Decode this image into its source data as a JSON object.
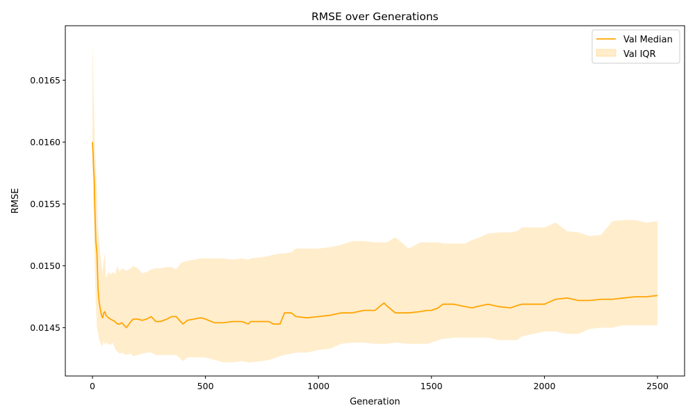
{
  "chart_data": {
    "type": "line",
    "title": "RMSE over Generations",
    "xlabel": "Generation",
    "ylabel": "RMSE",
    "xlim": [
      -120,
      2620
    ],
    "ylim": [
      0.01411,
      0.01694
    ],
    "xticks": [
      0,
      500,
      1000,
      1500,
      2000,
      2500
    ],
    "xtick_labels": [
      "0",
      "500",
      "1000",
      "1500",
      "2000",
      "2500"
    ],
    "yticks": [
      0.0145,
      0.015,
      0.0155,
      0.016,
      0.0165
    ],
    "ytick_labels": [
      "0.0145",
      "0.0150",
      "0.0155",
      "0.0160",
      "0.0165"
    ],
    "grid": false,
    "legend_position": "top-right",
    "colors": {
      "median": "#ffa500",
      "iqr_fill": "#ffa500",
      "iqr_alpha": 0.2
    },
    "series": [
      {
        "name": "Val Median",
        "kind": "line",
        "x": [
          0,
          3,
          5,
          8,
          10,
          15,
          20,
          25,
          30,
          35,
          40,
          45,
          50,
          55,
          60,
          70,
          80,
          90,
          100,
          110,
          120,
          130,
          150,
          170,
          180,
          200,
          220,
          240,
          260,
          280,
          300,
          330,
          350,
          370,
          390,
          400,
          420,
          450,
          480,
          500,
          540,
          580,
          620,
          660,
          690,
          700,
          750,
          780,
          800,
          830,
          850,
          880,
          900,
          950,
          1000,
          1050,
          1100,
          1150,
          1200,
          1250,
          1290,
          1300,
          1340,
          1400,
          1450,
          1480,
          1500,
          1530,
          1550,
          1600,
          1650,
          1680,
          1700,
          1750,
          1800,
          1850,
          1880,
          1900,
          2000,
          2050,
          2100,
          2150,
          2200,
          2250,
          2300,
          2350,
          2400,
          2450,
          2500
        ],
        "y": [
          0.016,
          0.0159,
          0.0158,
          0.0157,
          0.0155,
          0.0152,
          0.0151,
          0.0148,
          0.0147,
          0.01465,
          0.0146,
          0.01458,
          0.01462,
          0.01463,
          0.0146,
          0.01458,
          0.01457,
          0.01456,
          0.01455,
          0.01453,
          0.01453,
          0.01454,
          0.0145,
          0.01455,
          0.01457,
          0.01457,
          0.01456,
          0.01457,
          0.01459,
          0.01455,
          0.01455,
          0.01457,
          0.01459,
          0.01459,
          0.01455,
          0.01453,
          0.01456,
          0.01457,
          0.01458,
          0.01457,
          0.01454,
          0.01454,
          0.01455,
          0.01455,
          0.01453,
          0.01455,
          0.01455,
          0.01455,
          0.01453,
          0.01453,
          0.01462,
          0.01462,
          0.01459,
          0.01458,
          0.01459,
          0.0146,
          0.01462,
          0.01462,
          0.01464,
          0.01464,
          0.0147,
          0.01468,
          0.01462,
          0.01462,
          0.01463,
          0.01464,
          0.01464,
          0.01466,
          0.01469,
          0.01469,
          0.01467,
          0.01466,
          0.01467,
          0.01469,
          0.01467,
          0.01466,
          0.01468,
          0.01469,
          0.01469,
          0.01473,
          0.01474,
          0.01472,
          0.01472,
          0.01473,
          0.01473,
          0.01474,
          0.01475,
          0.01475,
          0.01476
        ]
      },
      {
        "name": "Val IQR",
        "kind": "band",
        "x": [
          0,
          3,
          5,
          8,
          10,
          15,
          20,
          25,
          30,
          35,
          40,
          45,
          50,
          55,
          60,
          70,
          80,
          90,
          100,
          110,
          120,
          130,
          150,
          170,
          180,
          200,
          220,
          240,
          260,
          280,
          300,
          330,
          350,
          370,
          390,
          400,
          420,
          450,
          480,
          500,
          540,
          580,
          620,
          660,
          690,
          700,
          750,
          780,
          800,
          830,
          850,
          880,
          900,
          950,
          1000,
          1050,
          1100,
          1150,
          1200,
          1250,
          1290,
          1300,
          1340,
          1400,
          1450,
          1480,
          1500,
          1530,
          1550,
          1600,
          1650,
          1680,
          1700,
          1750,
          1800,
          1850,
          1880,
          1900,
          2000,
          2050,
          2100,
          2150,
          2200,
          2250,
          2300,
          2350,
          2400,
          2450,
          2500
        ],
        "y_low": [
          0.0158,
          0.0156,
          0.0155,
          0.0152,
          0.015,
          0.0147,
          0.0145,
          0.01445,
          0.0144,
          0.01438,
          0.01436,
          0.01435,
          0.0144,
          0.01436,
          0.01438,
          0.01437,
          0.01436,
          0.01438,
          0.01433,
          0.01431,
          0.01429,
          0.0143,
          0.01428,
          0.01429,
          0.01427,
          0.01428,
          0.01429,
          0.0143,
          0.0143,
          0.01428,
          0.01428,
          0.01428,
          0.01428,
          0.01428,
          0.01425,
          0.01423,
          0.01426,
          0.01426,
          0.01426,
          0.01426,
          0.01424,
          0.01422,
          0.01422,
          0.01423,
          0.01422,
          0.01422,
          0.01423,
          0.01424,
          0.01425,
          0.01427,
          0.01428,
          0.01429,
          0.0143,
          0.0143,
          0.01432,
          0.01433,
          0.01437,
          0.01438,
          0.01438,
          0.01437,
          0.01437,
          0.01437,
          0.01438,
          0.01437,
          0.01437,
          0.01437,
          0.01438,
          0.0144,
          0.01441,
          0.01442,
          0.01442,
          0.01442,
          0.01442,
          0.01442,
          0.0144,
          0.0144,
          0.0144,
          0.01443,
          0.01447,
          0.01447,
          0.01445,
          0.01445,
          0.01449,
          0.0145,
          0.0145,
          0.01452,
          0.01452,
          0.01452,
          0.01452
        ],
        "y_high": [
          0.0168,
          0.0166,
          0.0164,
          0.0162,
          0.016,
          0.0158,
          0.0156,
          0.0153,
          0.0152,
          0.0151,
          0.015,
          0.01495,
          0.01505,
          0.0151,
          0.0149,
          0.01495,
          0.01493,
          0.01495,
          0.01493,
          0.015,
          0.01495,
          0.01498,
          0.01496,
          0.01498,
          0.015,
          0.01498,
          0.01494,
          0.01495,
          0.01497,
          0.01498,
          0.01498,
          0.01499,
          0.01499,
          0.01497,
          0.01502,
          0.01503,
          0.01504,
          0.01505,
          0.01506,
          0.01506,
          0.01506,
          0.01506,
          0.01505,
          0.01506,
          0.01505,
          0.01506,
          0.01507,
          0.01508,
          0.01509,
          0.0151,
          0.0151,
          0.01511,
          0.01514,
          0.01514,
          0.01514,
          0.01515,
          0.01517,
          0.0152,
          0.0152,
          0.01519,
          0.01519,
          0.01519,
          0.01523,
          0.01514,
          0.01519,
          0.01519,
          0.01519,
          0.01519,
          0.01518,
          0.01518,
          0.01518,
          0.01521,
          0.01522,
          0.01526,
          0.01527,
          0.01527,
          0.01528,
          0.01531,
          0.01531,
          0.01535,
          0.01528,
          0.01527,
          0.01524,
          0.01525,
          0.01536,
          0.01537,
          0.01537,
          0.01535,
          0.01536
        ]
      }
    ]
  }
}
